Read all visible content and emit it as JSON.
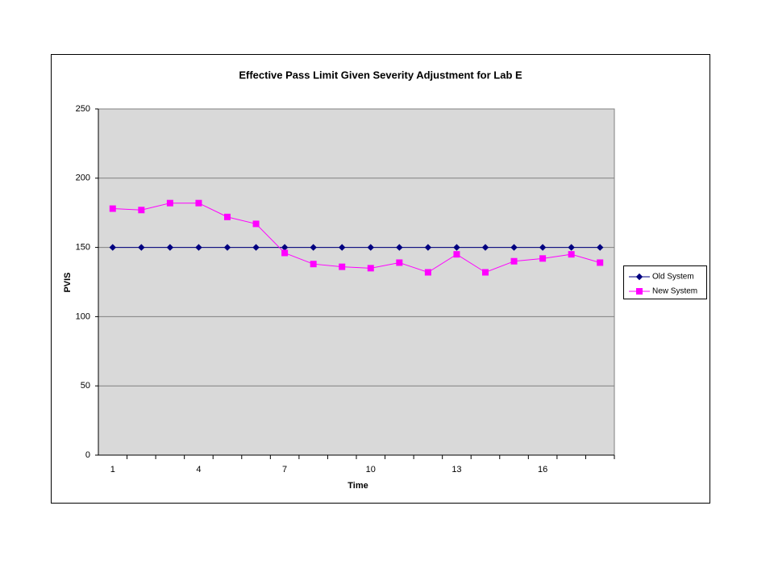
{
  "chart_data": {
    "type": "line",
    "title": "Effective Pass Limit Given Severity Adjustment for Lab E",
    "x_label": "Time",
    "y_label": "PVIS",
    "categories": [
      1,
      null,
      null,
      4,
      null,
      null,
      7,
      null,
      null,
      10,
      null,
      null,
      13,
      null,
      null,
      16,
      null,
      null
    ],
    "series": [
      {
        "name": "Old System",
        "color": "#000080",
        "marker": "diamond",
        "values": [
          150,
          150,
          150,
          150,
          150,
          150,
          150,
          150,
          150,
          150,
          150,
          150,
          150,
          150,
          150,
          150,
          150,
          150
        ]
      },
      {
        "name": "New System",
        "color": "#ff00ff",
        "marker": "square",
        "values": [
          178,
          177,
          182,
          182,
          172,
          167,
          146,
          138,
          136,
          135,
          139,
          132,
          145,
          132,
          140,
          142,
          145,
          139
        ]
      }
    ],
    "ylim": [
      0,
      250
    ],
    "yticks": [
      0,
      50,
      100,
      150,
      200,
      250
    ],
    "grid": true,
    "legend": "right"
  }
}
